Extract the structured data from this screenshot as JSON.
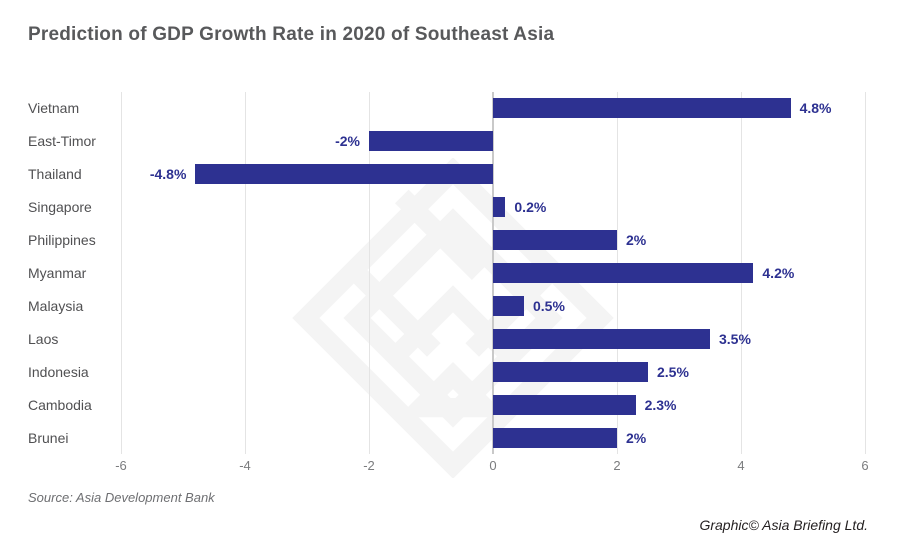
{
  "title": "Prediction of GDP Growth Rate in 2020 of Southeast Asia",
  "source_note": "Source: Asia Development Bank",
  "credit_note": "Graphic© Asia Briefing Ltd.",
  "colors": {
    "bar": "#2d3191",
    "value_label": "#2d3191",
    "title": "#58595b",
    "category_label": "#505052",
    "tick_label": "#7b7c7e",
    "gridline": "#e4e4e4",
    "zero_line": "#c9c9c9",
    "source_text": "#6e6f72",
    "credit_text": "#231f20",
    "watermark": "#f4f4f4",
    "background": "#ffffff"
  },
  "chart_data": {
    "type": "bar",
    "orientation": "horizontal",
    "title": "Prediction of GDP Growth Rate in 2020 of Southeast Asia",
    "categories": [
      "Vietnam",
      "East-Timor",
      "Thailand",
      "Singapore",
      "Philippines",
      "Myanmar",
      "Malaysia",
      "Laos",
      "Indonesia",
      "Cambodia",
      "Brunei"
    ],
    "values": [
      4.8,
      -2,
      -4.8,
      0.2,
      2,
      4.2,
      0.5,
      3.5,
      2.5,
      2.3,
      2
    ],
    "value_labels": [
      "4.8%",
      "-2%",
      "-4.8%",
      "0.2%",
      "2%",
      "4.2%",
      "0.5%",
      "3.5%",
      "2.5%",
      "2.3%",
      "2%"
    ],
    "x_ticks": [
      -6,
      -4,
      -2,
      0,
      2,
      4,
      6
    ],
    "xlim": [
      -6,
      6
    ],
    "xlabel": "",
    "ylabel": "",
    "grid": "vertical-only",
    "legend": "none",
    "unit": "percent"
  }
}
